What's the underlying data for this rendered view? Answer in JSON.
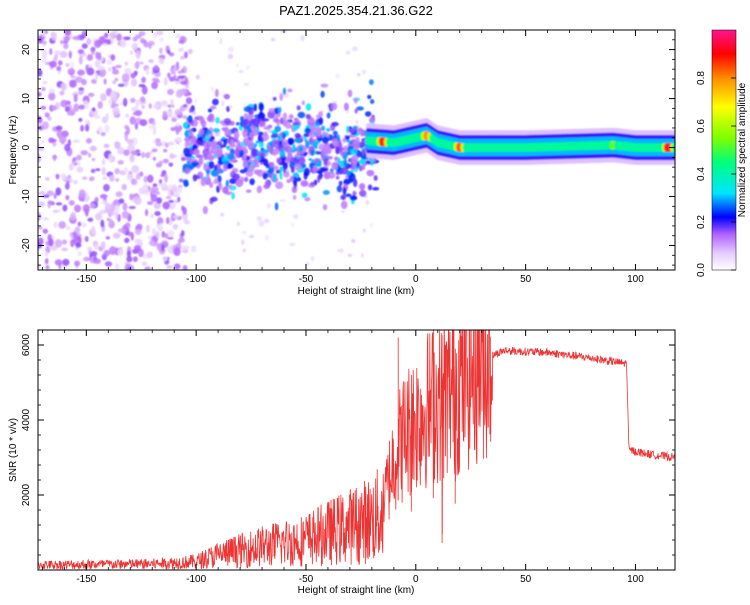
{
  "title": "PAZ1.2025.354.21.36.G22",
  "chart_data": [
    {
      "type": "heatmap",
      "xlabel": "Height of straight line (km)",
      "ylabel": "Frequency (Hz)",
      "xlim": [
        -172,
        118
      ],
      "ylim": [
        -25,
        24
      ],
      "xticks": [
        -150,
        -100,
        -50,
        0,
        50,
        100
      ],
      "yticks": [
        -20,
        -10,
        0,
        10,
        20
      ],
      "colorbar": {
        "label": "Normalized spectral amplitude",
        "range": [
          0,
          1
        ],
        "ticks": [
          "0.0",
          "0.2",
          "0.4",
          "0.6",
          "0.8"
        ],
        "colors": [
          "#ffffff",
          "#c080ff",
          "#7a00ff",
          "#0000ff",
          "#00e5ff",
          "#00ff7a",
          "#7dff00",
          "#ffff00",
          "#ff8c00",
          "#ff0000",
          "#ff1493"
        ]
      },
      "ridge": {
        "description_points": [
          [
            -25,
            1.5
          ],
          [
            -10,
            1
          ],
          [
            0,
            2
          ],
          [
            5,
            2.5
          ],
          [
            10,
            1
          ],
          [
            20,
            0
          ],
          [
            50,
            0
          ],
          [
            90,
            0.5
          ],
          [
            100,
            0
          ],
          [
            118,
            0
          ]
        ],
        "amplitude_peaks": [
          [
            -15,
            0.9
          ],
          [
            5,
            0.8
          ],
          [
            20,
            0.85
          ],
          [
            90,
            0.55
          ],
          [
            115,
            0.95
          ]
        ]
      }
    },
    {
      "type": "line",
      "xlabel": "Height of straight line (km)",
      "ylabel": "SNR (10 * v/v)",
      "xlim": [
        -172,
        118
      ],
      "ylim": [
        0,
        6400
      ],
      "xticks": [
        -150,
        -100,
        -50,
        0,
        50,
        100
      ],
      "yticks": [
        2000,
        4000,
        6000
      ],
      "series": [
        {
          "name": "SNR",
          "color": "#ee3333",
          "envelope": [
            [
              -172,
              150
            ],
            [
              -120,
              180
            ],
            [
              -100,
              250
            ],
            [
              -90,
              450
            ],
            [
              -70,
              700
            ],
            [
              -50,
              900
            ],
            [
              -35,
              1200
            ],
            [
              -20,
              1500
            ],
            [
              -15,
              1700
            ],
            [
              -10,
              3000
            ],
            [
              -5,
              3600
            ],
            [
              0,
              4000
            ],
            [
              5,
              4300
            ],
            [
              10,
              4500
            ],
            [
              20,
              5000
            ],
            [
              30,
              5600
            ],
            [
              40,
              5850
            ],
            [
              60,
              5800
            ],
            [
              80,
              5650
            ],
            [
              96,
              5500
            ],
            [
              97,
              3200
            ],
            [
              105,
              3100
            ],
            [
              118,
              3000
            ]
          ],
          "spikes": [
            [
              -8,
              6200
            ],
            [
              8,
              6400
            ],
            [
              -2,
              5200
            ],
            [
              12,
              2400
            ],
            [
              18,
              5900
            ]
          ]
        }
      ]
    }
  ]
}
